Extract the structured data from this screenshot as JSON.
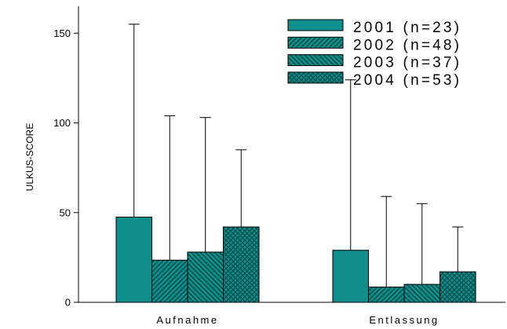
{
  "chart_data": {
    "type": "bar",
    "ylabel": "ULKUS-SCORE",
    "xlabel": "",
    "title": "",
    "ylim": [
      0,
      165
    ],
    "yticks": [
      0,
      50,
      100,
      150
    ],
    "categories": [
      "Aufnahme",
      "Entlassung"
    ],
    "series": [
      {
        "name": "2001 (n=23)",
        "values": [
          47.5,
          29.0
        ],
        "error_upper": [
          155.0,
          124.0
        ],
        "pattern": "solid",
        "color": "#0e8f8c"
      },
      {
        "name": "2002 (n=48)",
        "values": [
          23.5,
          8.5
        ],
        "error_upper": [
          104.0,
          59.0
        ],
        "pattern": "diag-forward",
        "color": "#0e8f8c"
      },
      {
        "name": "2003 (n=37)",
        "values": [
          28.0,
          10.0
        ],
        "error_upper": [
          103.0,
          55.0
        ],
        "pattern": "diag-backward",
        "color": "#0e8f8c"
      },
      {
        "name": "2004 (n=53)",
        "values": [
          42.0,
          17.0
        ],
        "error_upper": [
          85.0,
          42.0
        ],
        "pattern": "crosshatch",
        "color": "#0e8f8c"
      }
    ],
    "grid": false,
    "legend_position": "top-right",
    "colors": {
      "fill": "#0e8f8c",
      "hatch": "#0a4e4c",
      "stroke": "#000000"
    }
  }
}
